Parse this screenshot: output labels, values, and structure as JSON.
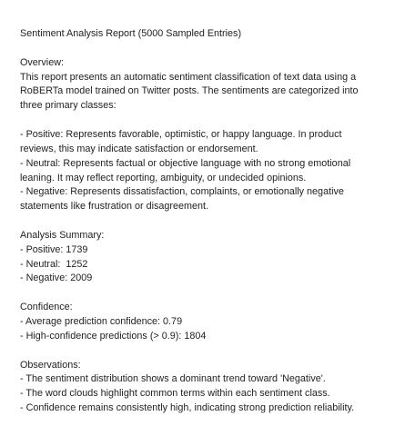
{
  "title": "Sentiment Analysis Report (5000 Sampled Entries)",
  "sections": [
    {
      "heading": "Overview:",
      "paragraphs": [
        [
          "This report presents an automatic sentiment classification of text data using a",
          "RoBERTa model trained on Twitter posts. The sentiments are categorized into",
          "three primary classes:"
        ],
        [
          "- Positive: Represents favorable, optimistic, or happy language. In product",
          "reviews, this may indicate satisfaction or endorsement.",
          "- Neutral: Represents factual or objective language with no strong emotional",
          "leaning. It may reflect reporting, ambiguity, or undecided opinions.",
          "- Negative: Represents dissatisfaction, complaints, or emotionally negative",
          "statements like frustration or disagreement."
        ]
      ]
    },
    {
      "heading": "Analysis Summary:",
      "paragraphs": [
        [
          "- Positive: 1739",
          "- Neutral:  1252",
          "- Negative: 2009"
        ]
      ]
    },
    {
      "heading": "Confidence:",
      "paragraphs": [
        [
          "- Average prediction confidence: 0.79",
          "- High-confidence predictions (> 0.9): 1804"
        ]
      ]
    },
    {
      "heading": "Observations:",
      "paragraphs": [
        [
          "- The sentiment distribution shows a dominant trend toward 'Negative'.",
          "- The word clouds highlight common terms within each sentiment class.",
          "- Confidence remains consistently high, indicating strong prediction reliability."
        ]
      ]
    }
  ]
}
